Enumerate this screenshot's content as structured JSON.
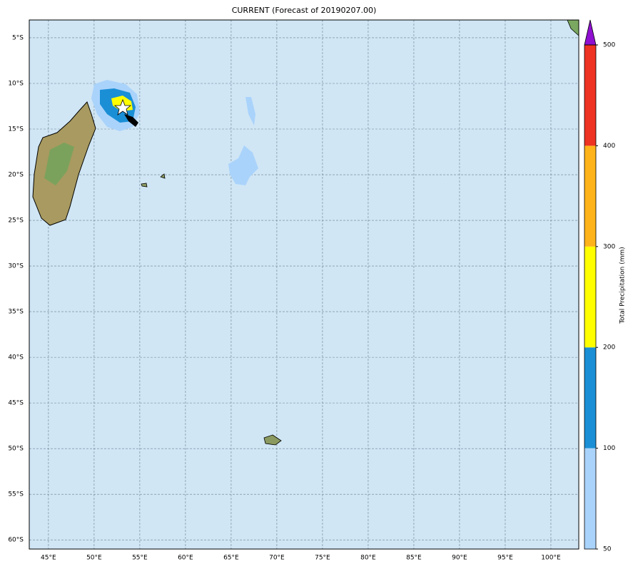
{
  "map": {
    "title": "CURRENT (Forecast of 20190207.00)",
    "lon_range": [
      42.9,
      103.05
    ],
    "lat_range": [
      -61.0,
      -3.05
    ],
    "lon_ticks": [
      {
        "value": 45,
        "label": "45°E"
      },
      {
        "value": 50,
        "label": "50°E"
      },
      {
        "value": 55,
        "label": "55°E"
      },
      {
        "value": 60,
        "label": "60°E"
      },
      {
        "value": 65,
        "label": "65°E"
      },
      {
        "value": 70,
        "label": "70°E"
      },
      {
        "value": 75,
        "label": "75°E"
      },
      {
        "value": 80,
        "label": "80°E"
      },
      {
        "value": 85,
        "label": "85°E"
      },
      {
        "value": 90,
        "label": "90°E"
      },
      {
        "value": 95,
        "label": "95°E"
      },
      {
        "value": 100,
        "label": "100°E"
      }
    ],
    "lat_ticks": [
      {
        "value": -5,
        "label": "5°S"
      },
      {
        "value": -10,
        "label": "10°S"
      },
      {
        "value": -15,
        "label": "15°S"
      },
      {
        "value": -20,
        "label": "20°S"
      },
      {
        "value": -25,
        "label": "25°S"
      },
      {
        "value": -30,
        "label": "30°S"
      },
      {
        "value": -35,
        "label": "35°S"
      },
      {
        "value": -40,
        "label": "40°S"
      },
      {
        "value": -45,
        "label": "45°S"
      },
      {
        "value": -50,
        "label": "50°S"
      },
      {
        "value": -55,
        "label": "55°S"
      },
      {
        "value": -60,
        "label": "60°S"
      }
    ],
    "grid": true,
    "colorbar": {
      "label": "Total Precipitation (mm)",
      "levels": [
        50,
        100,
        200,
        300,
        400,
        500
      ],
      "colors": [
        "#aad3fb",
        "#1a8fd6",
        "#ffff00",
        "#ffb31a",
        "#ee3322"
      ],
      "extend_color": "#8f10d0"
    }
  }
}
